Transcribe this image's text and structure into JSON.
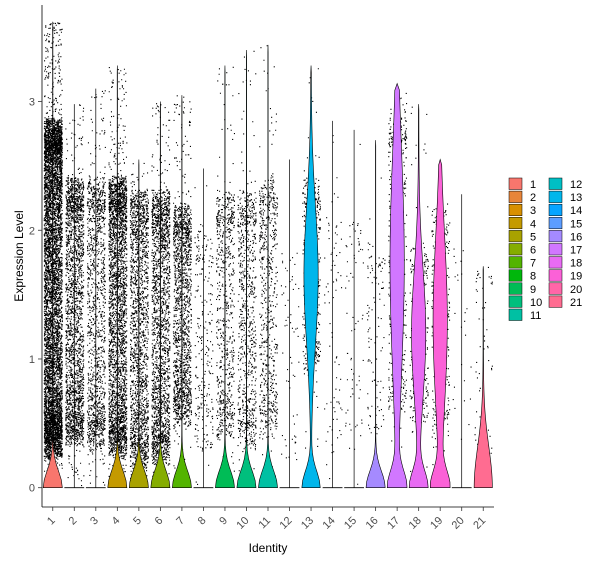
{
  "chart_data": {
    "type": "violin",
    "title": "",
    "xlabel": "Identity",
    "ylabel": "Expression Level",
    "ylim": [
      -0.15,
      3.75
    ],
    "yticks": [
      0,
      1,
      2,
      3
    ],
    "grid": false,
    "legend_position": "right",
    "show_points": true,
    "categories": [
      "1",
      "2",
      "3",
      "4",
      "5",
      "6",
      "7",
      "8",
      "9",
      "10",
      "11",
      "12",
      "13",
      "14",
      "15",
      "16",
      "17",
      "18",
      "19",
      "20",
      "21"
    ],
    "colors": [
      "#F8766D",
      "#E8853A",
      "#D89000",
      "#C49A00",
      "#A9A200",
      "#85AD00",
      "#53B400",
      "#00B70C",
      "#00BC56",
      "#00BF7D",
      "#00C0A3",
      "#00BFC4",
      "#00B6EB",
      "#06A4FF",
      "#5C9DFF",
      "#A58AFF",
      "#D177FF",
      "#E86BF3",
      "#FB61D7",
      "#FF66A8",
      "#FF6C91"
    ],
    "series": [
      {
        "name": "1",
        "max": 3.62,
        "points": 6500,
        "dense_top": 2.75,
        "dense_bottom": 0.35,
        "violin": "spike"
      },
      {
        "name": "2",
        "max": 2.98,
        "points": 2200,
        "dense_top": 2.3,
        "dense_bottom": 0.45,
        "violin": "none"
      },
      {
        "name": "3",
        "max": 3.1,
        "points": 1300,
        "dense_top": 2.3,
        "dense_bottom": 0.4,
        "violin": "none"
      },
      {
        "name": "4",
        "max": 3.28,
        "points": 3000,
        "dense_top": 2.3,
        "dense_bottom": 0.35,
        "violin": "spike"
      },
      {
        "name": "5",
        "max": 2.55,
        "points": 1800,
        "dense_top": 2.2,
        "dense_bottom": 0.25,
        "violin": "spike"
      },
      {
        "name": "6",
        "max": 3.0,
        "points": 2000,
        "dense_top": 2.2,
        "dense_bottom": 0.3,
        "violin": "spike"
      },
      {
        "name": "7",
        "max": 3.05,
        "points": 1600,
        "dense_top": 2.1,
        "dense_bottom": 0.6,
        "violin": "spike"
      },
      {
        "name": "8",
        "max": 2.48,
        "points": 250,
        "dense_top": 1.9,
        "dense_bottom": 0.4,
        "violin": "none"
      },
      {
        "name": "9",
        "max": 3.28,
        "points": 700,
        "dense_top": 2.2,
        "dense_bottom": 0.5,
        "violin": "spike"
      },
      {
        "name": "10",
        "max": 3.4,
        "points": 800,
        "dense_top": 2.2,
        "dense_bottom": 0.4,
        "violin": "spike"
      },
      {
        "name": "11",
        "max": 3.44,
        "points": 650,
        "dense_top": 2.3,
        "dense_bottom": 0.5,
        "violin": "spike"
      },
      {
        "name": "12",
        "max": 2.55,
        "points": 60,
        "dense_top": 1.8,
        "dense_bottom": 0.3,
        "violin": "none"
      },
      {
        "name": "13",
        "max": 3.28,
        "points": 450,
        "dense_top": 2.3,
        "dense_bottom": 1.0,
        "violin": "full"
      },
      {
        "name": "14",
        "max": 2.85,
        "points": 80,
        "dense_top": 2.0,
        "dense_bottom": 0.4,
        "violin": "none"
      },
      {
        "name": "15",
        "max": 2.78,
        "points": 70,
        "dense_top": 2.0,
        "dense_bottom": 0.4,
        "violin": "none"
      },
      {
        "name": "16",
        "max": 2.7,
        "points": 110,
        "dense_top": 1.8,
        "dense_bottom": 0.5,
        "violin": "spike"
      },
      {
        "name": "17",
        "max": 3.14,
        "points": 500,
        "dense_top": 2.8,
        "dense_bottom": 0.7,
        "violin": "full"
      },
      {
        "name": "18",
        "max": 2.98,
        "points": 300,
        "dense_top": 1.8,
        "dense_bottom": 0.6,
        "violin": "full"
      },
      {
        "name": "19",
        "max": 2.55,
        "points": 350,
        "dense_top": 2.1,
        "dense_bottom": 0.5,
        "violin": "full"
      },
      {
        "name": "20",
        "max": 2.28,
        "points": 25,
        "dense_top": 1.8,
        "dense_bottom": 0.4,
        "violin": "none"
      },
      {
        "name": "21",
        "max": 1.72,
        "points": 60,
        "dense_top": 1.7,
        "dense_bottom": 0.3,
        "violin": "tail"
      }
    ]
  }
}
